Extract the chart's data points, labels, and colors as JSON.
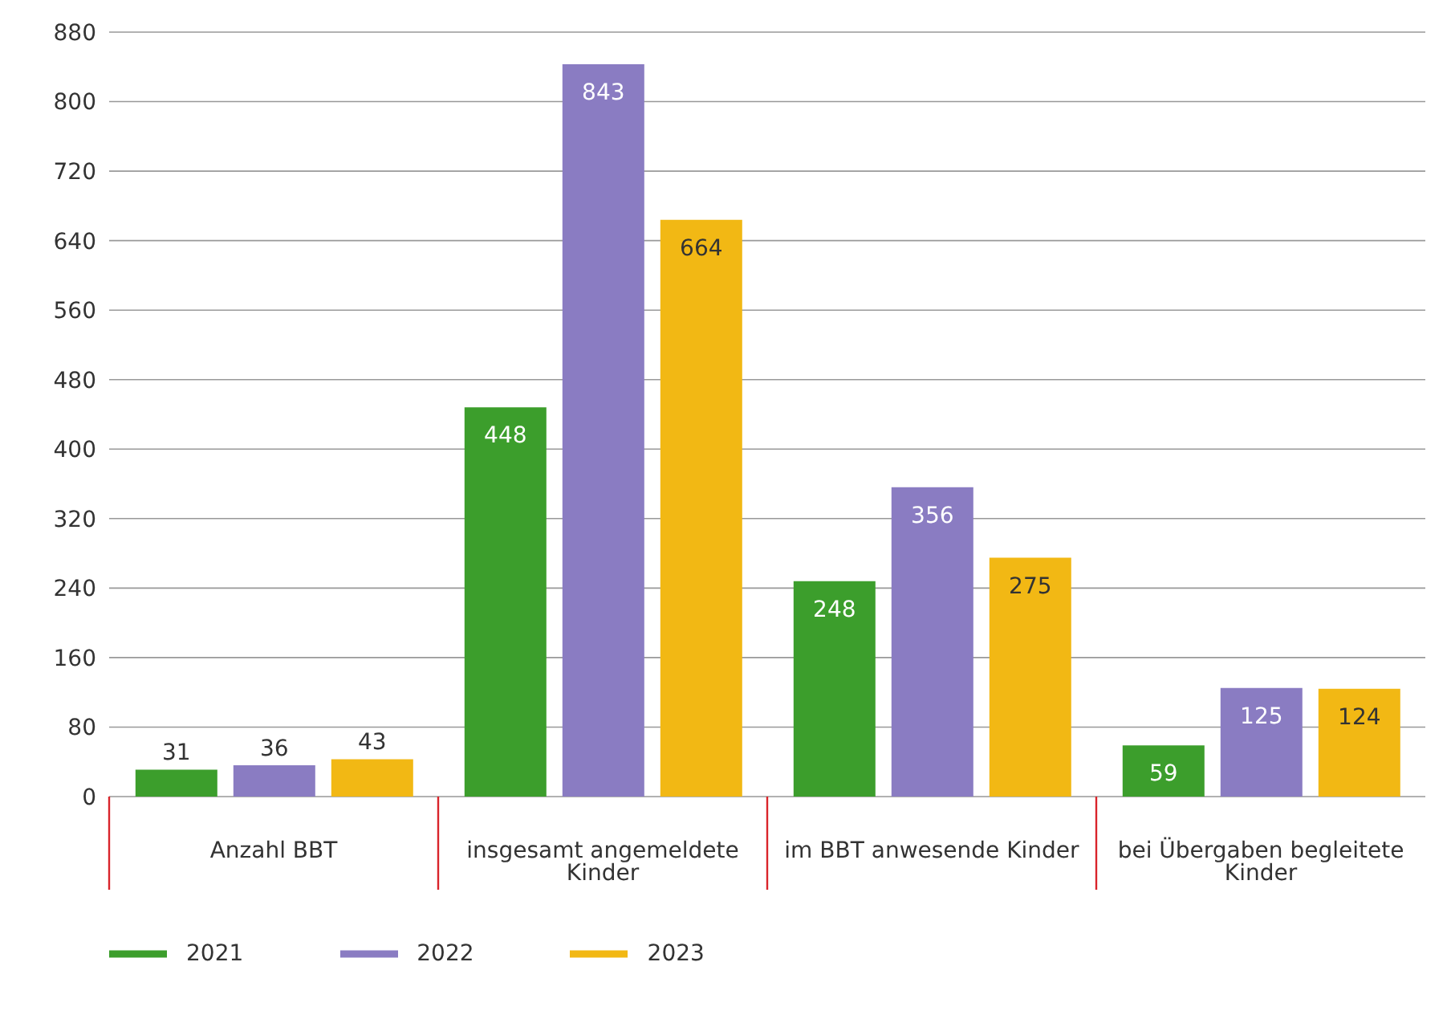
{
  "chart_data": {
    "type": "bar",
    "categories": [
      "Anzahl BBT",
      "insgesamt angemeldete Kinder",
      "im BBT anwesende Kinder",
      "bei Übergaben begleitete Kinder"
    ],
    "series": [
      {
        "name": "2021",
        "color": "#3c9e2c",
        "values": [
          31,
          448,
          248,
          59
        ]
      },
      {
        "name": "2022",
        "color": "#8a7cc2",
        "values": [
          36,
          843,
          356,
          125
        ]
      },
      {
        "name": "2023",
        "color": "#f2b814",
        "values": [
          43,
          664,
          275,
          124
        ]
      }
    ],
    "ylim": [
      0,
      880
    ],
    "yticks": [
      0,
      80,
      160,
      240,
      320,
      400,
      480,
      560,
      640,
      720,
      800,
      880
    ],
    "grid": "y",
    "legend": "bottom",
    "data_labels": true
  }
}
